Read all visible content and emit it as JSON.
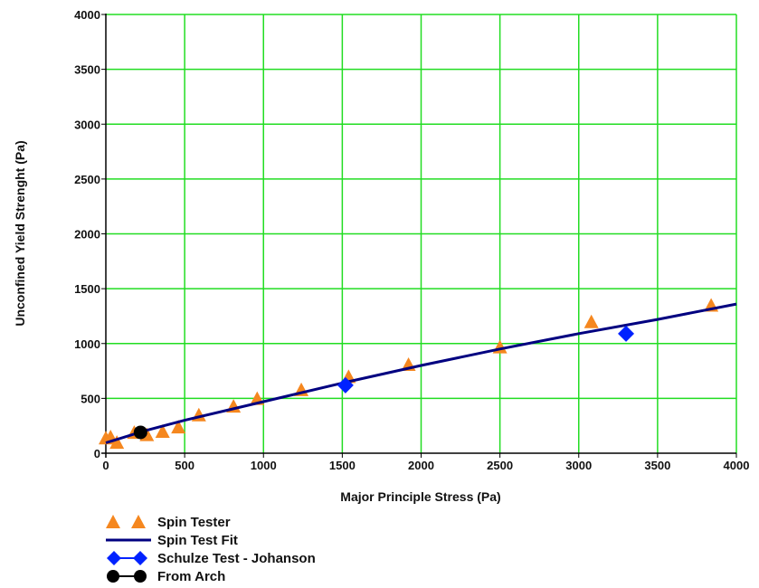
{
  "chart_data": {
    "type": "scatter",
    "title": "",
    "xlabel": "Major Principle Stress (Pa)",
    "ylabel": "Unconfined Yield Strenght (Pa)",
    "xlim": [
      0,
      4000
    ],
    "ylim": [
      0,
      4000
    ],
    "xticks": [
      0,
      500,
      1000,
      1500,
      2000,
      2500,
      3000,
      3500,
      4000
    ],
    "yticks": [
      0,
      500,
      1000,
      1500,
      2000,
      2500,
      3000,
      3500,
      4000
    ],
    "grid": true,
    "legend_position": "bottom-left",
    "colors": {
      "grid": "#22dd22",
      "spin_tester": "#f5871f",
      "fit": "#000080",
      "schulze": "#0022ff",
      "arch": "#000000",
      "axis": "#000000"
    },
    "series": [
      {
        "name": "Spin Tester",
        "marker": "triangle",
        "color": "#f5871f",
        "x": [
          0,
          30,
          70,
          180,
          260,
          360,
          460,
          590,
          810,
          960,
          1240,
          1540,
          1920,
          2500,
          3080,
          3840
        ],
        "y": [
          130,
          140,
          90,
          180,
          160,
          190,
          230,
          340,
          420,
          490,
          570,
          690,
          800,
          960,
          1190,
          1340
        ]
      },
      {
        "name": "Spin Test Fit",
        "marker": "line",
        "color": "#000080",
        "x": [
          0,
          250,
          500,
          1000,
          1500,
          2000,
          2500,
          3000,
          3500,
          4000
        ],
        "y": [
          95,
          205,
          300,
          470,
          640,
          800,
          950,
          1090,
          1220,
          1360
        ]
      },
      {
        "name": "Schulze Test - Johanson",
        "marker": "diamond",
        "color": "#0022ff",
        "x": [
          1520,
          3300
        ],
        "y": [
          620,
          1090
        ]
      },
      {
        "name": "From Arch",
        "marker": "circle",
        "color": "#000000",
        "x": [
          220
        ],
        "y": [
          190
        ]
      }
    ]
  }
}
